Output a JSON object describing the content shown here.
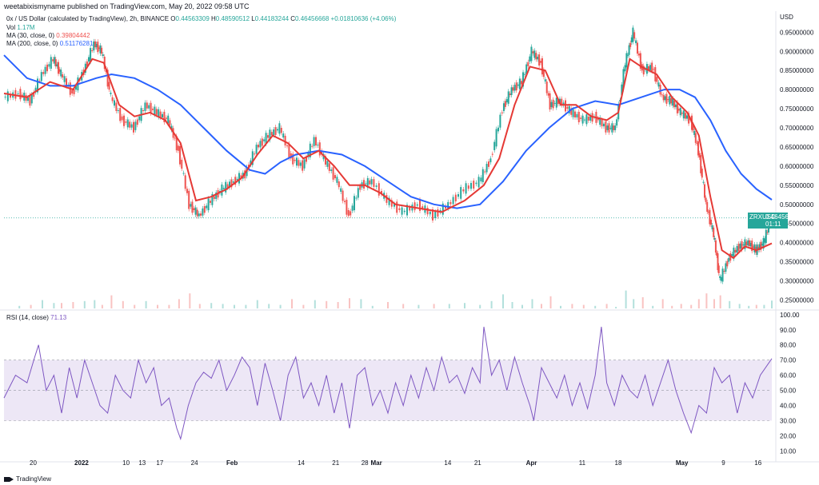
{
  "header": {
    "published": "weetabixismyname published on TradingView.com, May 20, 2022 09:58 UTC"
  },
  "legend": {
    "symbol": "0x / US Dollar (calculated by TradingView), 2h, BINANCE",
    "o_label": "O",
    "o_value": "0.44563309",
    "h_label": "H",
    "h_value": "0.48590512",
    "l_label": "L",
    "l_value": "0.44183244",
    "c_label": "C",
    "c_value": "0.46456668",
    "change": "+0.01810636 (+4.06%)",
    "vol_label": "Vol",
    "vol_value": "1.17M",
    "ma30_label": "MA (30, close, 0)",
    "ma30_value": "0.39804442",
    "ma200_label": "MA (200, close, 0)",
    "ma200_value": "0.51176281",
    "rsi_label": "RSI (14, close)",
    "rsi_value": "71.13"
  },
  "price_badge": {
    "symbol": "ZRXUSD",
    "price": "0.46456668",
    "countdown": "01:11"
  },
  "footer": {
    "brand": "TradingView"
  },
  "colors": {
    "up": "#26a69a",
    "down": "#ef5350",
    "ma30": "#e53935",
    "ma200": "#2962ff",
    "rsi_line": "#7e57c2",
    "rsi_band": "#ede7f6"
  },
  "chart_data": [
    {
      "type": "line",
      "name": "price",
      "y_axis_title": "USD",
      "y_ticks": [
        "0.95000000",
        "0.90000000",
        "0.85000000",
        "0.80000000",
        "0.75000000",
        "0.70000000",
        "0.65000000",
        "0.60000000",
        "0.55000000",
        "0.50000000",
        "0.45000000",
        "0.40000000",
        "0.35000000",
        "0.30000000",
        "0.25000000"
      ],
      "ylim": [
        0.228,
        1.005
      ],
      "x_ticks": [
        {
          "label": "20",
          "pos": 0.038
        },
        {
          "label": "2022",
          "pos": 0.101
        },
        {
          "label": "10",
          "pos": 0.159
        },
        {
          "label": "13",
          "pos": 0.18
        },
        {
          "label": "17",
          "pos": 0.203
        },
        {
          "label": "24",
          "pos": 0.248
        },
        {
          "label": "Feb",
          "pos": 0.297
        },
        {
          "label": "14",
          "pos": 0.387
        },
        {
          "label": "21",
          "pos": 0.432
        },
        {
          "label": "28",
          "pos": 0.47
        },
        {
          "label": "Mar",
          "pos": 0.485
        },
        {
          "label": "14",
          "pos": 0.578
        },
        {
          "label": "21",
          "pos": 0.617
        },
        {
          "label": "Apr",
          "pos": 0.687
        },
        {
          "label": "11",
          "pos": 0.753
        },
        {
          "label": "18",
          "pos": 0.8
        },
        {
          "label": "May",
          "pos": 0.883
        },
        {
          "label": "9",
          "pos": 0.937
        },
        {
          "label": "16",
          "pos": 0.982
        }
      ],
      "close_series": [
        [
          0.0,
          0.78
        ],
        [
          0.02,
          0.79
        ],
        [
          0.035,
          0.77
        ],
        [
          0.05,
          0.84
        ],
        [
          0.065,
          0.88
        ],
        [
          0.075,
          0.84
        ],
        [
          0.09,
          0.79
        ],
        [
          0.105,
          0.85
        ],
        [
          0.118,
          0.92
        ],
        [
          0.128,
          0.9
        ],
        [
          0.14,
          0.78
        ],
        [
          0.155,
          0.72
        ],
        [
          0.17,
          0.7
        ],
        [
          0.185,
          0.76
        ],
        [
          0.2,
          0.74
        ],
        [
          0.215,
          0.72
        ],
        [
          0.228,
          0.64
        ],
        [
          0.242,
          0.5
        ],
        [
          0.255,
          0.47
        ],
        [
          0.27,
          0.51
        ],
        [
          0.285,
          0.54
        ],
        [
          0.3,
          0.56
        ],
        [
          0.315,
          0.58
        ],
        [
          0.33,
          0.65
        ],
        [
          0.345,
          0.68
        ],
        [
          0.36,
          0.7
        ],
        [
          0.375,
          0.62
        ],
        [
          0.39,
          0.6
        ],
        [
          0.405,
          0.67
        ],
        [
          0.42,
          0.61
        ],
        [
          0.435,
          0.56
        ],
        [
          0.45,
          0.47
        ],
        [
          0.465,
          0.55
        ],
        [
          0.48,
          0.56
        ],
        [
          0.5,
          0.51
        ],
        [
          0.52,
          0.48
        ],
        [
          0.54,
          0.5
        ],
        [
          0.56,
          0.47
        ],
        [
          0.58,
          0.5
        ],
        [
          0.6,
          0.54
        ],
        [
          0.62,
          0.56
        ],
        [
          0.635,
          0.62
        ],
        [
          0.65,
          0.75
        ],
        [
          0.662,
          0.8
        ],
        [
          0.675,
          0.82
        ],
        [
          0.688,
          0.9
        ],
        [
          0.7,
          0.87
        ],
        [
          0.712,
          0.76
        ],
        [
          0.725,
          0.77
        ],
        [
          0.74,
          0.74
        ],
        [
          0.755,
          0.72
        ],
        [
          0.77,
          0.73
        ],
        [
          0.785,
          0.7
        ],
        [
          0.797,
          0.7
        ],
        [
          0.81,
          0.87
        ],
        [
          0.82,
          0.95
        ],
        [
          0.832,
          0.85
        ],
        [
          0.845,
          0.86
        ],
        [
          0.858,
          0.78
        ],
        [
          0.87,
          0.77
        ],
        [
          0.882,
          0.74
        ],
        [
          0.895,
          0.72
        ],
        [
          0.905,
          0.64
        ],
        [
          0.915,
          0.5
        ],
        [
          0.925,
          0.42
        ],
        [
          0.933,
          0.3
        ],
        [
          0.945,
          0.36
        ],
        [
          0.958,
          0.39
        ],
        [
          0.97,
          0.4
        ],
        [
          0.98,
          0.38
        ],
        [
          0.99,
          0.4
        ],
        [
          1.0,
          0.465
        ]
      ],
      "ma30_series": [
        [
          0.0,
          0.79
        ],
        [
          0.03,
          0.78
        ],
        [
          0.06,
          0.82
        ],
        [
          0.09,
          0.8
        ],
        [
          0.115,
          0.88
        ],
        [
          0.13,
          0.87
        ],
        [
          0.15,
          0.76
        ],
        [
          0.17,
          0.73
        ],
        [
          0.19,
          0.74
        ],
        [
          0.21,
          0.72
        ],
        [
          0.23,
          0.66
        ],
        [
          0.25,
          0.51
        ],
        [
          0.27,
          0.52
        ],
        [
          0.29,
          0.54
        ],
        [
          0.31,
          0.57
        ],
        [
          0.33,
          0.63
        ],
        [
          0.35,
          0.68
        ],
        [
          0.37,
          0.66
        ],
        [
          0.39,
          0.62
        ],
        [
          0.41,
          0.64
        ],
        [
          0.43,
          0.6
        ],
        [
          0.45,
          0.55
        ],
        [
          0.47,
          0.55
        ],
        [
          0.49,
          0.53
        ],
        [
          0.51,
          0.5
        ],
        [
          0.54,
          0.49
        ],
        [
          0.57,
          0.48
        ],
        [
          0.6,
          0.51
        ],
        [
          0.625,
          0.55
        ],
        [
          0.645,
          0.62
        ],
        [
          0.665,
          0.76
        ],
        [
          0.685,
          0.86
        ],
        [
          0.705,
          0.85
        ],
        [
          0.725,
          0.76
        ],
        [
          0.745,
          0.76
        ],
        [
          0.765,
          0.73
        ],
        [
          0.785,
          0.72
        ],
        [
          0.8,
          0.74
        ],
        [
          0.815,
          0.88
        ],
        [
          0.83,
          0.86
        ],
        [
          0.85,
          0.84
        ],
        [
          0.87,
          0.78
        ],
        [
          0.89,
          0.74
        ],
        [
          0.905,
          0.68
        ],
        [
          0.92,
          0.52
        ],
        [
          0.935,
          0.38
        ],
        [
          0.95,
          0.36
        ],
        [
          0.965,
          0.39
        ],
        [
          0.98,
          0.38
        ],
        [
          1.0,
          0.398
        ]
      ],
      "ma200_series": [
        [
          0.0,
          0.89
        ],
        [
          0.03,
          0.83
        ],
        [
          0.06,
          0.81
        ],
        [
          0.09,
          0.81
        ],
        [
          0.12,
          0.83
        ],
        [
          0.14,
          0.84
        ],
        [
          0.17,
          0.83
        ],
        [
          0.2,
          0.8
        ],
        [
          0.23,
          0.76
        ],
        [
          0.26,
          0.7
        ],
        [
          0.29,
          0.64
        ],
        [
          0.32,
          0.59
        ],
        [
          0.34,
          0.58
        ],
        [
          0.36,
          0.61
        ],
        [
          0.38,
          0.63
        ],
        [
          0.41,
          0.64
        ],
        [
          0.44,
          0.63
        ],
        [
          0.47,
          0.6
        ],
        [
          0.5,
          0.56
        ],
        [
          0.53,
          0.52
        ],
        [
          0.56,
          0.5
        ],
        [
          0.59,
          0.49
        ],
        [
          0.62,
          0.5
        ],
        [
          0.65,
          0.56
        ],
        [
          0.68,
          0.64
        ],
        [
          0.71,
          0.7
        ],
        [
          0.74,
          0.75
        ],
        [
          0.77,
          0.77
        ],
        [
          0.8,
          0.76
        ],
        [
          0.83,
          0.78
        ],
        [
          0.86,
          0.8
        ],
        [
          0.88,
          0.8
        ],
        [
          0.9,
          0.78
        ],
        [
          0.92,
          0.72
        ],
        [
          0.94,
          0.64
        ],
        [
          0.96,
          0.58
        ],
        [
          0.98,
          0.54
        ],
        [
          1.0,
          0.512
        ]
      ],
      "current_price": 0.46456668
    },
    {
      "type": "line",
      "name": "rsi",
      "y_ticks": [
        "100.00",
        "90.00",
        "80.00",
        "70.00",
        "60.00",
        "50.00",
        "40.00",
        "30.00",
        "20.00",
        "10.00"
      ],
      "ylim": [
        6,
        102
      ],
      "band": [
        30,
        70
      ],
      "midline": 50,
      "rsi_series": [
        [
          0.0,
          45
        ],
        [
          0.015,
          60
        ],
        [
          0.03,
          55
        ],
        [
          0.04,
          72
        ],
        [
          0.045,
          80
        ],
        [
          0.055,
          50
        ],
        [
          0.065,
          60
        ],
        [
          0.075,
          35
        ],
        [
          0.085,
          65
        ],
        [
          0.095,
          45
        ],
        [
          0.105,
          70
        ],
        [
          0.115,
          55
        ],
        [
          0.125,
          40
        ],
        [
          0.135,
          35
        ],
        [
          0.145,
          60
        ],
        [
          0.155,
          50
        ],
        [
          0.165,
          45
        ],
        [
          0.175,
          70
        ],
        [
          0.185,
          55
        ],
        [
          0.195,
          65
        ],
        [
          0.205,
          40
        ],
        [
          0.215,
          45
        ],
        [
          0.225,
          25
        ],
        [
          0.23,
          18
        ],
        [
          0.24,
          40
        ],
        [
          0.25,
          55
        ],
        [
          0.26,
          62
        ],
        [
          0.27,
          58
        ],
        [
          0.28,
          70
        ],
        [
          0.29,
          50
        ],
        [
          0.3,
          60
        ],
        [
          0.31,
          72
        ],
        [
          0.32,
          65
        ],
        [
          0.33,
          40
        ],
        [
          0.34,
          68
        ],
        [
          0.35,
          50
        ],
        [
          0.36,
          30
        ],
        [
          0.37,
          60
        ],
        [
          0.38,
          72
        ],
        [
          0.39,
          45
        ],
        [
          0.4,
          55
        ],
        [
          0.41,
          40
        ],
        [
          0.42,
          60
        ],
        [
          0.43,
          35
        ],
        [
          0.44,
          55
        ],
        [
          0.45,
          25
        ],
        [
          0.46,
          60
        ],
        [
          0.47,
          65
        ],
        [
          0.48,
          40
        ],
        [
          0.49,
          50
        ],
        [
          0.5,
          35
        ],
        [
          0.51,
          55
        ],
        [
          0.52,
          40
        ],
        [
          0.53,
          60
        ],
        [
          0.54,
          45
        ],
        [
          0.55,
          65
        ],
        [
          0.56,
          50
        ],
        [
          0.57,
          72
        ],
        [
          0.58,
          55
        ],
        [
          0.59,
          60
        ],
        [
          0.6,
          48
        ],
        [
          0.61,
          65
        ],
        [
          0.62,
          55
        ],
        [
          0.625,
          92
        ],
        [
          0.635,
          60
        ],
        [
          0.645,
          70
        ],
        [
          0.655,
          50
        ],
        [
          0.665,
          72
        ],
        [
          0.675,
          55
        ],
        [
          0.685,
          40
        ],
        [
          0.69,
          30
        ],
        [
          0.7,
          65
        ],
        [
          0.71,
          55
        ],
        [
          0.72,
          45
        ],
        [
          0.73,
          60
        ],
        [
          0.74,
          40
        ],
        [
          0.75,
          55
        ],
        [
          0.76,
          38
        ],
        [
          0.77,
          60
        ],
        [
          0.778,
          92
        ],
        [
          0.785,
          55
        ],
        [
          0.795,
          40
        ],
        [
          0.805,
          60
        ],
        [
          0.815,
          50
        ],
        [
          0.825,
          45
        ],
        [
          0.835,
          60
        ],
        [
          0.845,
          40
        ],
        [
          0.855,
          55
        ],
        [
          0.865,
          70
        ],
        [
          0.875,
          50
        ],
        [
          0.885,
          35
        ],
        [
          0.895,
          22
        ],
        [
          0.905,
          40
        ],
        [
          0.915,
          35
        ],
        [
          0.925,
          65
        ],
        [
          0.935,
          55
        ],
        [
          0.945,
          60
        ],
        [
          0.955,
          35
        ],
        [
          0.965,
          55
        ],
        [
          0.975,
          45
        ],
        [
          0.985,
          60
        ],
        [
          1.0,
          71
        ]
      ]
    }
  ]
}
